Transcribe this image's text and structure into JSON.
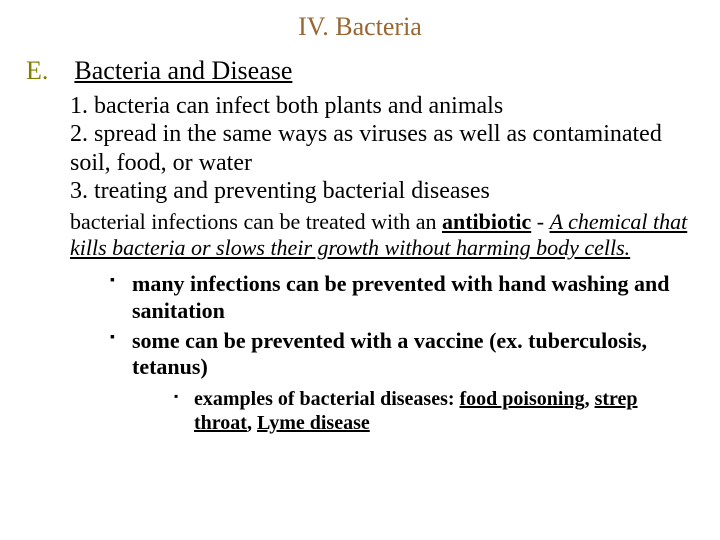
{
  "colors": {
    "title": "#996633",
    "section_letter": "#808000",
    "text": "#000000",
    "background": "#ffffff"
  },
  "typography": {
    "family": "Times New Roman",
    "title_size_pt": 26,
    "section_size_pt": 26,
    "body_size_pt": 24,
    "para_size_pt": 22,
    "bullet1_size_pt": 22,
    "bullet2_size_pt": 20
  },
  "title": "IV. Bacteria",
  "section": {
    "letter": "E.",
    "text": "Bacteria and Disease"
  },
  "numbered": [
    {
      "n": "1.",
      "text": "bacteria can infect both plants and animals"
    },
    {
      "n": "2.",
      "text": "spread in the same ways as viruses as well as contaminated soil, food, or water"
    },
    {
      "n": "3.",
      "text": "treating and preventing bacterial diseases"
    }
  ],
  "para": {
    "lead": "bacterial infections can be treated with an ",
    "term": "antibiotic",
    "dash": " - ",
    "def": "A chemical that kills bacteria or slows their growth without harming body cells."
  },
  "bullets1": [
    {
      "pre": "many infections can be prevented with ",
      "b1": "hand washing",
      "mid": " and ",
      "b2": "sanitation",
      "post": ""
    },
    {
      "pre": "some can be prevented with a ",
      "b1": "vaccine",
      "mid": "",
      "b2": "",
      "post": " (ex. tuberculosis, tetanus)"
    }
  ],
  "bullets2": {
    "lead": "examples of bacterial diseases:  ",
    "d1": "food poisoning",
    "sep1": ", ",
    "d2": "strep throat",
    "sep2": ", ",
    "d3": "Lyme disease"
  }
}
